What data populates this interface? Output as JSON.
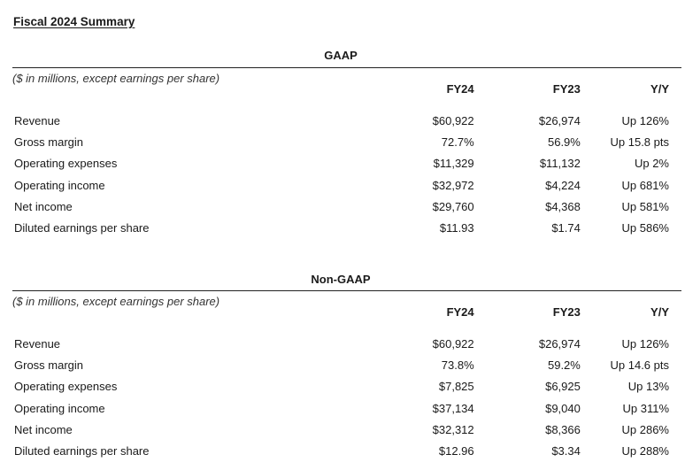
{
  "page": {
    "title": "Fiscal 2024 Summary"
  },
  "sections": [
    {
      "title": "GAAP",
      "unit_note": "($ in millions, except earnings per share)",
      "columns": [
        "FY24",
        "FY23",
        "Y/Y"
      ],
      "rows": [
        {
          "label": "Revenue",
          "fy24": "$60,922",
          "fy23": "$26,974",
          "yy": "Up 126%"
        },
        {
          "label": "Gross margin",
          "fy24": "72.7%",
          "fy23": "56.9%",
          "yy": "Up 15.8 pts"
        },
        {
          "label": "Operating expenses",
          "fy24": "$11,329",
          "fy23": "$11,132",
          "yy": "Up 2%"
        },
        {
          "label": "Operating income",
          "fy24": "$32,972",
          "fy23": "$4,224",
          "yy": "Up 681%"
        },
        {
          "label": "Net income",
          "fy24": "$29,760",
          "fy23": "$4,368",
          "yy": "Up 581%"
        },
        {
          "label": "Diluted earnings per share",
          "fy24": "$11.93",
          "fy23": "$1.74",
          "yy": "Up 586%"
        }
      ]
    },
    {
      "title": "Non-GAAP",
      "unit_note": "($ in millions, except earnings per share)",
      "columns": [
        "FY24",
        "FY23",
        "Y/Y"
      ],
      "rows": [
        {
          "label": "Revenue",
          "fy24": "$60,922",
          "fy23": "$26,974",
          "yy": "Up 126%"
        },
        {
          "label": "Gross margin",
          "fy24": "73.8%",
          "fy23": "59.2%",
          "yy": "Up 14.6 pts"
        },
        {
          "label": "Operating expenses",
          "fy24": "$7,825",
          "fy23": "$6,925",
          "yy": "Up 13%"
        },
        {
          "label": "Operating income",
          "fy24": "$37,134",
          "fy23": "$9,040",
          "yy": "Up 311%"
        },
        {
          "label": "Net income",
          "fy24": "$32,312",
          "fy23": "$8,366",
          "yy": "Up 286%"
        },
        {
          "label": "Diluted earnings per share",
          "fy24": "$12.96",
          "fy23": "$3.34",
          "yy": "Up 288%"
        }
      ]
    }
  ]
}
